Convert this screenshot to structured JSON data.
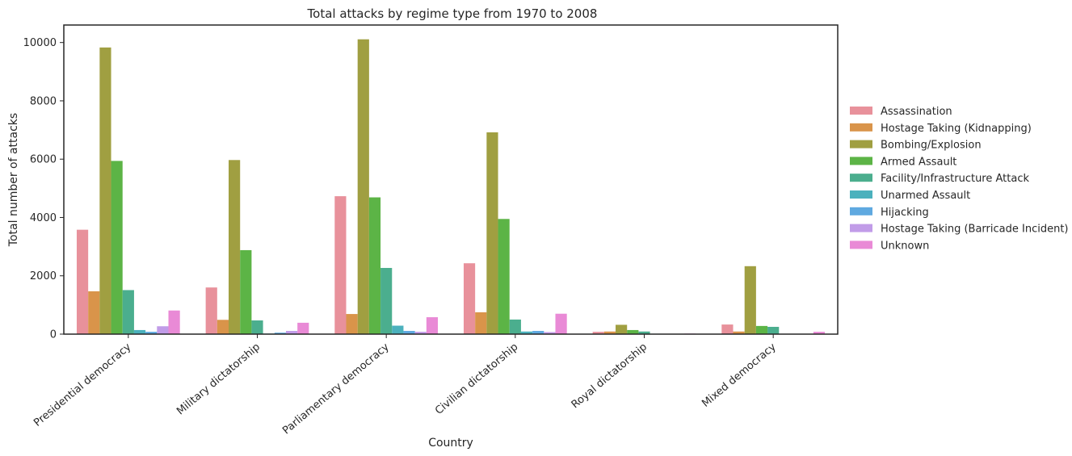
{
  "chart_data": {
    "type": "bar",
    "title": "Total attacks by regime type from 1970 to 2008",
    "xlabel": "Country",
    "ylabel": "Total number of attacks",
    "ylim": [
      0,
      10600
    ],
    "yticks": [
      0,
      2000,
      4000,
      6000,
      8000,
      10000
    ],
    "grid": false,
    "legend_position": "right",
    "categories": [
      "Presidential democracy",
      "Military dictatorship",
      "Parliamentary democracy",
      "Civilian dictatorship",
      "Royal dictatorship",
      "Mixed democracy"
    ],
    "series": [
      {
        "name": "Assassination",
        "color": "#e8919b",
        "values": [
          3580,
          1600,
          4730,
          2430,
          80,
          330
        ]
      },
      {
        "name": "Hostage Taking (Kidnapping)",
        "color": "#d9944a",
        "values": [
          1470,
          490,
          690,
          750,
          90,
          90
        ]
      },
      {
        "name": "Bombing/Explosion",
        "color": "#a09f41",
        "values": [
          9830,
          5970,
          10110,
          6920,
          320,
          2330
        ]
      },
      {
        "name": "Armed Assault",
        "color": "#5cb446",
        "values": [
          5940,
          2880,
          4690,
          3950,
          140,
          280
        ]
      },
      {
        "name": "Facility/Infrastructure Attack",
        "color": "#4bae8e",
        "values": [
          1510,
          470,
          2270,
          500,
          90,
          250
        ]
      },
      {
        "name": "Unarmed Assault",
        "color": "#4bb1bd",
        "values": [
          140,
          20,
          290,
          90,
          15,
          10
        ]
      },
      {
        "name": "Hijacking",
        "color": "#5fa9e0",
        "values": [
          80,
          50,
          110,
          110,
          5,
          5
        ]
      },
      {
        "name": "Hostage Taking (Barricade Incident)",
        "color": "#c19ce8",
        "values": [
          270,
          110,
          80,
          70,
          5,
          5
        ]
      },
      {
        "name": "Unknown",
        "color": "#e98ad6",
        "values": [
          810,
          390,
          580,
          700,
          20,
          80
        ]
      }
    ]
  }
}
